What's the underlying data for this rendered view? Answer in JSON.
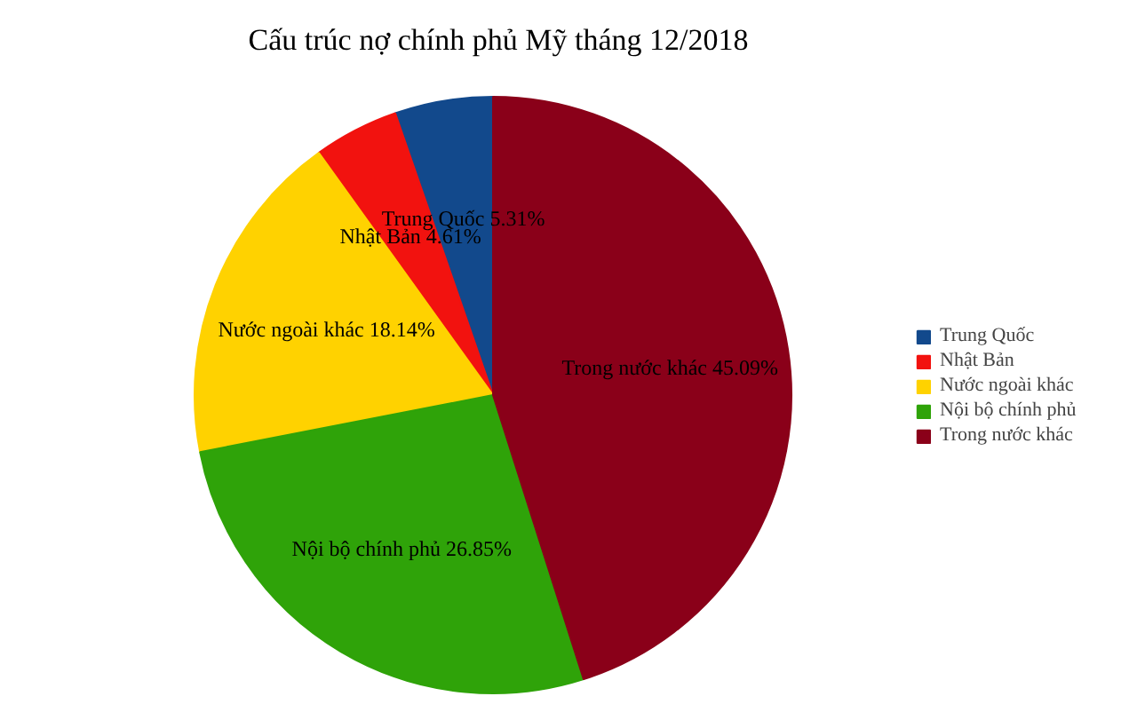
{
  "chart_data": {
    "type": "pie",
    "title": "Cấu trúc nợ chính phủ Mỹ tháng 12/2018",
    "categories": [
      "Trung Quốc",
      "Nhật Bản",
      "Nước ngoài khác",
      "Nội bộ chính phủ",
      "Trong nước khác"
    ],
    "values": [
      5.31,
      4.61,
      18.14,
      26.85,
      45.09
    ],
    "colors": [
      "#12498c",
      "#f2120f",
      "#ffd200",
      "#2fa309",
      "#8a0019"
    ],
    "value_labels": [
      "5.31%",
      "4.61%",
      "18.14%",
      "26.85%",
      "45.09%"
    ],
    "legend": "right"
  }
}
